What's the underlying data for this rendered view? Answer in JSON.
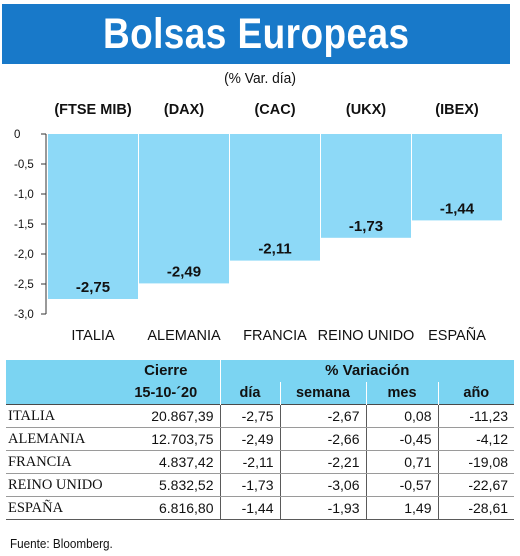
{
  "title": "Bolsas Europeas",
  "subtitle": "(% Var. día)",
  "colors": {
    "title_bg": "#1879c9",
    "bar": "#8dd9f7",
    "table_header": "#7bd4f2"
  },
  "chart_data": {
    "type": "bar",
    "indices": [
      "(FTSE MIB)",
      "(DAX)",
      "(CAC)",
      "(UKX)",
      "(IBEX)"
    ],
    "categories": [
      "ITALIA",
      "ALEMANIA",
      "FRANCIA",
      "REINO UNIDO",
      "ESPAÑA"
    ],
    "values": [
      -2.75,
      -2.49,
      -2.11,
      -1.73,
      -1.44
    ],
    "value_labels": [
      "-2,75",
      "-2,49",
      "-2,11",
      "-1,73",
      "-1,44"
    ],
    "yticks": [
      0,
      -0.5,
      -1.0,
      -1.5,
      -2.0,
      -2.5,
      -3.0
    ],
    "ytick_labels": [
      "0",
      "-0,5",
      "-1,0",
      "-1,5",
      "-2,0",
      "-2,5",
      "-3,0"
    ],
    "ylim": [
      -3.0,
      0
    ],
    "grid": false,
    "legend": "none"
  },
  "table": {
    "header_cierre": "Cierre",
    "header_variacion": "% Variación",
    "header_date": "15-10-´20",
    "header_cols": [
      "día",
      "semana",
      "mes",
      "año"
    ],
    "rows": [
      {
        "name": "ITALIA",
        "cierre": "20.867,39",
        "dia": "-2,75",
        "semana": "-2,67",
        "mes": "0,08",
        "ano": "-11,23"
      },
      {
        "name": "ALEMANIA",
        "cierre": "12.703,75",
        "dia": "-2,49",
        "semana": "-2,66",
        "mes": "-0,45",
        "ano": "-4,12"
      },
      {
        "name": "FRANCIA",
        "cierre": "4.837,42",
        "dia": "-2,11",
        "semana": "-2,21",
        "mes": "0,71",
        "ano": "-19,08"
      },
      {
        "name": "REINO UNIDO",
        "cierre": "5.832,52",
        "dia": "-1,73",
        "semana": "-3,06",
        "mes": "-0,57",
        "ano": "-22,67"
      },
      {
        "name": "ESPAÑA",
        "cierre": "6.816,80",
        "dia": "-1,44",
        "semana": "-1,93",
        "mes": "1,49",
        "ano": "-28,61"
      }
    ]
  },
  "source": "Fuente: Bloomberg."
}
